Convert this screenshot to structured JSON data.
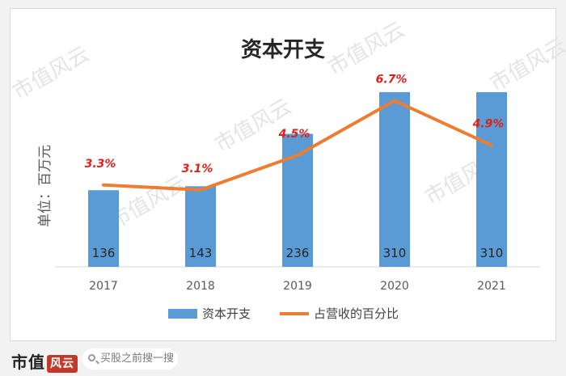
{
  "chart_data": {
    "type": "bar",
    "title": "资本开支",
    "ylabel": "单位：百万元",
    "categories": [
      "2017",
      "2018",
      "2019",
      "2020",
      "2021"
    ],
    "series": [
      {
        "name": "资本开支",
        "type": "bar",
        "values": [
          136,
          143,
          236,
          310,
          310
        ],
        "color": "#5b9bd5"
      },
      {
        "name": "占营收的百分比",
        "type": "line",
        "values": [
          3.3,
          3.1,
          4.5,
          6.7,
          4.9
        ],
        "labels": [
          "3.3%",
          "3.1%",
          "4.5%",
          "6.7%",
          "4.9%"
        ],
        "color": "#ed7d31"
      }
    ],
    "ylim_bar": [
      0,
      330
    ],
    "ylim_line": [
      0,
      7.5
    ],
    "legend_position": "bottom",
    "grid": false
  },
  "watermark": "市值风云",
  "footer": {
    "logo_text": "市值",
    "logo_mark": "风云",
    "search_placeholder": "买股之前搜一搜"
  },
  "colors": {
    "bar": "#5b9bd5",
    "line": "#ed7d31",
    "pct_label": "#e0201b"
  }
}
